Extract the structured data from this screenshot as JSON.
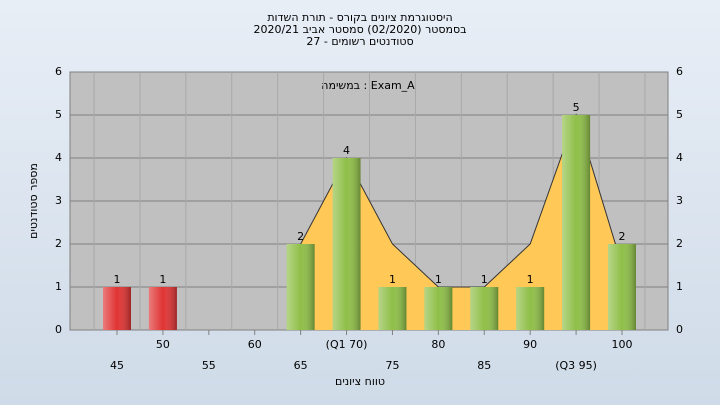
{
  "chart_data": {
    "type": "bar",
    "title": "היסטוגרמת ציונים בקורס - תורת השדות",
    "subtitle": "בסמסטר  (02/2020)  סמסטר אביב 2020/21",
    "subtitle2": "סטודנטים רשומים - 27",
    "annotation": "במשימה : Exam_A",
    "xlabel": "טווח ציונים",
    "ylabel": "מספר סטודנטים",
    "categories": [
      "45",
      "50",
      "55",
      "60",
      "65",
      "(Q1 70)",
      "75",
      "80",
      "85",
      "90",
      "(Q3 95)",
      "100"
    ],
    "values": [
      1,
      1,
      0,
      0,
      2,
      4,
      1,
      1,
      1,
      1,
      5,
      2
    ],
    "colors": [
      "#e03434",
      "#e03434",
      "#8fbf48",
      "#8fbf48",
      "#8fbf48",
      "#8fbf48",
      "#8fbf48",
      "#8fbf48",
      "#8fbf48",
      "#8fbf48",
      "#8fbf48",
      "#8fbf48"
    ],
    "overlay": {
      "color": "#ffc857",
      "values": [
        null,
        null,
        null,
        null,
        2,
        4,
        2,
        1,
        1,
        2,
        5,
        1.5
      ]
    },
    "ylim": [
      0,
      6
    ],
    "yticks": [
      0,
      1,
      2,
      3,
      4,
      5,
      6
    ],
    "grid": true
  }
}
